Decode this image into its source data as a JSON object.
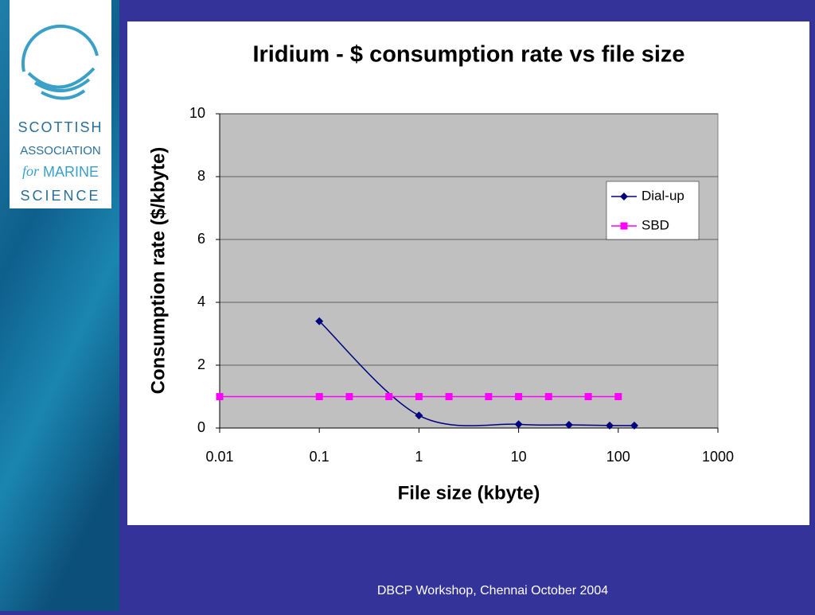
{
  "logo": {
    "lines": [
      "SCOTTISH",
      "ASSOCIATION",
      "for",
      "MARINE",
      "SCIENCE"
    ]
  },
  "footer": "DBCP Workshop, Chennai October 2004",
  "chart_data": {
    "type": "line",
    "title": "Iridium - $ consumption rate vs file size",
    "x_label": "File size (kbyte)",
    "y_label": "Consumption rate ($/kbyte)",
    "xscale": "log",
    "xlim": [
      0.01,
      1000
    ],
    "xticks": [
      0.01,
      0.1,
      1,
      10,
      100,
      1000
    ],
    "ylim": [
      0,
      10
    ],
    "yticks": [
      0,
      2,
      4,
      6,
      8,
      10
    ],
    "grid": true,
    "legend": "right",
    "series": [
      {
        "name": "Dial-up",
        "color": "#000080",
        "marker": "diamond",
        "smooth": true,
        "x": [
          0.1,
          1,
          10,
          32,
          82,
          145
        ],
        "values": [
          3.4,
          0.4,
          0.12,
          0.1,
          0.08,
          0.08
        ]
      },
      {
        "name": "SBD",
        "color": "#ff00ff",
        "marker": "square",
        "smooth": false,
        "x": [
          0.01,
          0.1,
          0.2,
          0.5,
          1,
          2,
          5,
          10,
          20,
          50,
          100
        ],
        "values": [
          1,
          1,
          1,
          1,
          1,
          1,
          1,
          1,
          1,
          1,
          1
        ]
      }
    ]
  }
}
